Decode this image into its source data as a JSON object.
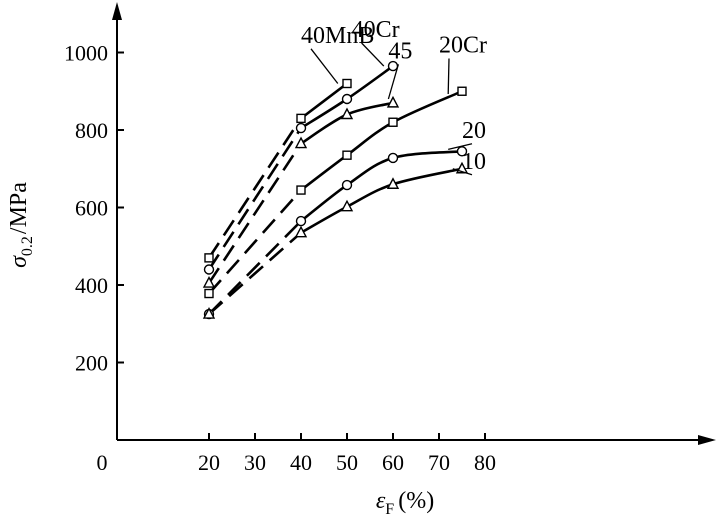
{
  "chart_data": {
    "type": "line",
    "title": "",
    "xlabel": {
      "symbol": "ε",
      "subscript": "F",
      "unit": "(%)"
    },
    "ylabel": {
      "symbol": "σ",
      "subscript": "0.2",
      "unit": "/MPa"
    },
    "origin_label": "0",
    "xlim": [
      0,
      87
    ],
    "ylim": [
      0,
      1150
    ],
    "x_ticks": [
      20,
      30,
      40,
      50,
      60,
      70,
      80
    ],
    "y_ticks": [
      200,
      400,
      600,
      800,
      1000
    ],
    "grid": false,
    "legend": "none",
    "series": [
      {
        "name": "40MnB",
        "marker": "square",
        "points": [
          [
            20,
            470
          ],
          [
            40,
            830
          ],
          [
            50,
            920
          ]
        ],
        "dashed_until": 40,
        "label_at": [
          40,
          1025
        ],
        "leader_to": [
          48,
          920
        ]
      },
      {
        "name": "40Cr",
        "marker": "circle",
        "points": [
          [
            20,
            440
          ],
          [
            40,
            805
          ],
          [
            50,
            880
          ],
          [
            60,
            965
          ]
        ],
        "dashed_until": 40,
        "label_at": [
          51,
          1040
        ],
        "leader_to": [
          58,
          965
        ]
      },
      {
        "name": "45",
        "marker": "triangle",
        "points": [
          [
            20,
            405
          ],
          [
            40,
            765
          ],
          [
            50,
            840
          ],
          [
            60,
            870
          ]
        ],
        "dashed_until": 40,
        "label_at": [
          59,
          985
        ],
        "leader_to": [
          59,
          880
        ]
      },
      {
        "name": "20Cr",
        "marker": "square",
        "points": [
          [
            20,
            378
          ],
          [
            40,
            645
          ],
          [
            50,
            735
          ],
          [
            60,
            820
          ],
          [
            75,
            900
          ]
        ],
        "dashed_until": 40,
        "label_at": [
          70,
          1000
        ],
        "leader_to": [
          72,
          893
        ]
      },
      {
        "name": "20",
        "marker": "circle",
        "points": [
          [
            20,
            325
          ],
          [
            40,
            565
          ],
          [
            50,
            658
          ],
          [
            60,
            728
          ],
          [
            75,
            745
          ]
        ],
        "dashed_until": 40,
        "label_at": [
          75,
          780
        ],
        "leader_to": [
          72,
          750
        ]
      },
      {
        "name": "10",
        "marker": "triangle",
        "points": [
          [
            40,
            535
          ],
          [
            50,
            602
          ],
          [
            60,
            660
          ],
          [
            75,
            700
          ]
        ],
        "dashed_until": 20,
        "dashed_from": [
          20,
          325
        ],
        "label_at": [
          75,
          700
        ],
        "leader_to": [
          73,
          700
        ]
      }
    ]
  }
}
